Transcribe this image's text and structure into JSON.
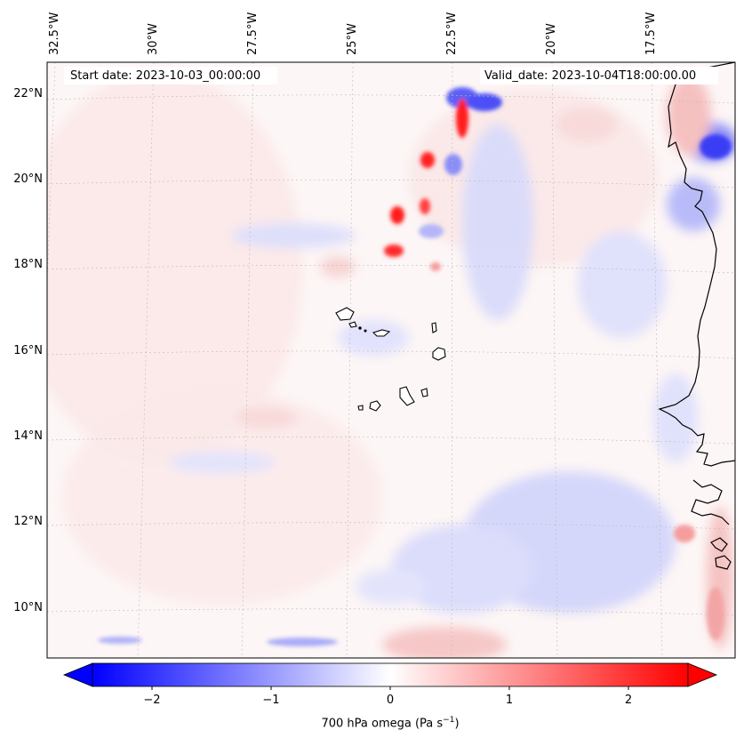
{
  "header": {
    "start_date": "Start date: 2023-10-03_00:00:00",
    "valid_date": "Valid_date: 2023-10-04T18:00:00.00"
  },
  "map": {
    "longitude_labels": [
      "32.5°W",
      "30°W",
      "27.5°W",
      "25°W",
      "22.5°W",
      "20°W",
      "17.5°W"
    ],
    "latitude_labels": [
      "22°N",
      "20°N",
      "18°N",
      "16°N",
      "14°N",
      "12°N",
      "10°N"
    ],
    "gridlines": true,
    "coastline_color": "#000000"
  },
  "colorbar": {
    "label_prefix": "700 hPa omega (Pa s",
    "label_sup": "−1",
    "label_suffix": ")",
    "ticks": [
      "−2",
      "−1",
      "0",
      "1",
      "2"
    ],
    "range": [
      -2.5,
      2.5
    ],
    "extend": "both",
    "colormap": "bwr",
    "negative_color": "#0000ff",
    "zero_color": "#ffffff",
    "positive_color": "#ff0000"
  }
}
